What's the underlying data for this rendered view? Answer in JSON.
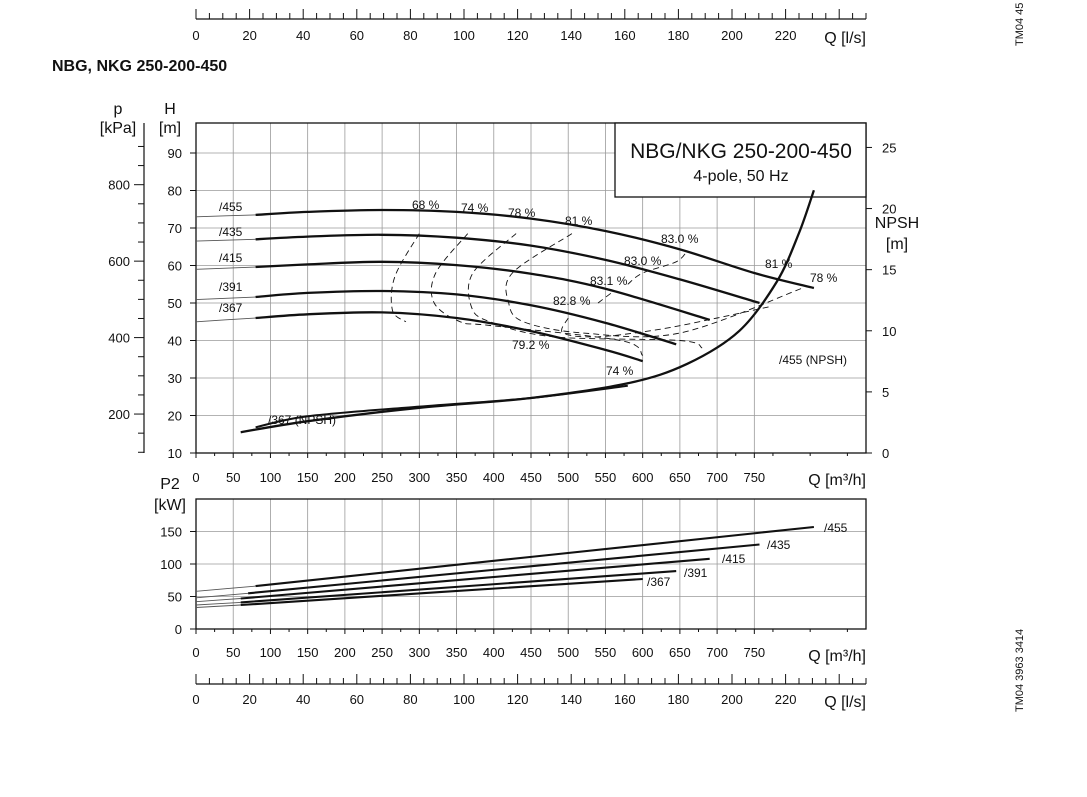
{
  "page": {
    "title": "NBG, NKG 250-200-450",
    "code_top": "TM04 45",
    "code_bottom": "TM04 3963 3414"
  },
  "colors": {
    "line": "#111111",
    "grid": "#9a9a9a",
    "thin": "#555555"
  },
  "chart_data": [
    {
      "id": "ls_axis_top",
      "type": "axis",
      "label": "Q [l/s]",
      "ticks": [
        0,
        20,
        40,
        60,
        80,
        100,
        120,
        140,
        160,
        180,
        200,
        220
      ],
      "range": [
        0,
        250
      ]
    },
    {
      "id": "head",
      "type": "line",
      "title": "NBG/NKG 250-200-450",
      "subtitle": "4-pole, 50 Hz",
      "xlabel": "Q [m³/h]",
      "xlim": [
        0,
        900
      ],
      "xticks": [
        0,
        50,
        100,
        150,
        200,
        250,
        300,
        350,
        400,
        450,
        500,
        550,
        600,
        650,
        700,
        750
      ],
      "ylabel_h": "H",
      "unit_h": "[m]",
      "ylim_h": [
        10,
        98
      ],
      "yticks_h": [
        10,
        20,
        30,
        40,
        50,
        60,
        70,
        80,
        90
      ],
      "ylabel_p": "p",
      "unit_p": "[kPa]",
      "yticks_p": [
        200,
        400,
        600,
        800
      ],
      "ylabel_npsh": "NPSH",
      "unit_npsh": "[m]",
      "ylim_npsh": [
        0,
        27
      ],
      "yticks_npsh": [
        0,
        5,
        10,
        15,
        20,
        25
      ],
      "grid": true,
      "series": [
        {
          "name": "/455",
          "x": [
            0,
            80,
            150,
            250,
            350,
            450,
            550,
            650,
            750,
            830
          ],
          "y": [
            73,
            73.5,
            74.3,
            74.8,
            74.3,
            72.5,
            69.2,
            64.3,
            58,
            54
          ]
        },
        {
          "name": "/435",
          "x": [
            0,
            80,
            150,
            250,
            350,
            450,
            550,
            650,
            757
          ],
          "y": [
            66.5,
            67,
            67.7,
            68.2,
            67.4,
            65.3,
            61.5,
            56.3,
            50
          ]
        },
        {
          "name": "/415",
          "x": [
            0,
            80,
            150,
            250,
            350,
            450,
            550,
            690
          ],
          "y": [
            59,
            59.6,
            60.3,
            61,
            60.1,
            57.8,
            53.8,
            45.5
          ]
        },
        {
          "name": "/391",
          "x": [
            0,
            80,
            150,
            250,
            350,
            450,
            550,
            645
          ],
          "y": [
            50.9,
            51.6,
            52.7,
            53.2,
            52.3,
            49.4,
            44.7,
            39
          ]
        },
        {
          "name": "/367",
          "x": [
            0,
            80,
            150,
            250,
            350,
            450,
            550,
            600
          ],
          "y": [
            45,
            46,
            47,
            47.5,
            46,
            42.5,
            37.5,
            34.5
          ]
        }
      ],
      "npsh": [
        {
          "name": "/455 (NPSH)",
          "x": [
            60,
            150,
            300,
            450,
            580,
            660,
            730,
            780,
            810,
            830
          ],
          "y": [
            1.7,
            2.6,
            3.7,
            4.5,
            5.7,
            7.3,
            10,
            14,
            18,
            21.5
          ]
        },
        {
          "name": "/367 (NPSH)",
          "x": [
            80,
            150,
            300,
            450,
            580
          ],
          "y": [
            2.1,
            3,
            3.8,
            4.5,
            5.5
          ]
        }
      ],
      "efficiency_contours": [
        {
          "label": "68 %",
          "x": [
            300,
            267,
            264,
            282
          ],
          "y": [
            68.5,
            57,
            48,
            45
          ]
        },
        {
          "label": "74 %",
          "x": [
            365,
            322,
            320,
            355,
            395,
            570,
            600
          ],
          "y": [
            68.5,
            58,
            50,
            45,
            44,
            40,
            36
          ]
        },
        {
          "label": "78 %",
          "x": [
            430,
            372,
            370,
            395,
            480,
            650,
            680
          ],
          "y": [
            68.5,
            58,
            49,
            45,
            41,
            40,
            38
          ]
        },
        {
          "label": "81 %",
          "x": [
            505,
            425,
            420,
            440,
            520,
            650,
            815
          ],
          "y": [
            68.5,
            58,
            50,
            45,
            42,
            42,
            54
          ]
        },
        {
          "label": "82.8 %",
          "x": [
            500,
            493,
            540,
            623,
            700,
            770
          ],
          "y": [
            46,
            42,
            41,
            43,
            46,
            49
          ]
        },
        {
          "label": "83.1 %",
          "x": [
            540,
            560
          ],
          "y": [
            50,
            53
          ]
        },
        {
          "label": "83.0 %",
          "x": [
            580,
            600,
            645,
            660
          ],
          "y": [
            55,
            58,
            61,
            64
          ]
        }
      ],
      "annotations": [
        "68 %",
        "74 %",
        "78 %",
        "81 %",
        "83.0 %",
        "83.0 %",
        "83.1 %",
        "82.8 %",
        "79.2 %",
        "74 %",
        "81 %",
        "78 %"
      ]
    },
    {
      "id": "power",
      "type": "line",
      "xlabel": "Q [m³/h]",
      "xlim": [
        0,
        900
      ],
      "xticks": [
        0,
        50,
        100,
        150,
        200,
        250,
        300,
        350,
        400,
        450,
        500,
        550,
        600,
        650,
        700,
        750
      ],
      "ylabel": "P2",
      "unit": "[kW]",
      "ylim": [
        0,
        200
      ],
      "yticks": [
        0,
        50,
        100,
        150
      ],
      "grid": true,
      "series": [
        {
          "name": "/455",
          "x": [
            0,
            80,
            830
          ],
          "y": [
            58,
            66,
            157
          ]
        },
        {
          "name": "/435",
          "x": [
            0,
            70,
            757
          ],
          "y": [
            48,
            55,
            130
          ]
        },
        {
          "name": "/415",
          "x": [
            0,
            60,
            690
          ],
          "y": [
            42,
            47,
            108
          ]
        },
        {
          "name": "/391",
          "x": [
            0,
            60,
            645
          ],
          "y": [
            37,
            41,
            89
          ]
        },
        {
          "name": "/367",
          "x": [
            0,
            60,
            600
          ],
          "y": [
            33,
            37,
            77
          ]
        }
      ]
    },
    {
      "id": "ls_axis_bottom",
      "type": "axis",
      "label": "Q [l/s]",
      "ticks": [
        0,
        20,
        40,
        60,
        80,
        100,
        120,
        140,
        160,
        180,
        200,
        220
      ],
      "range": [
        0,
        250
      ]
    }
  ]
}
